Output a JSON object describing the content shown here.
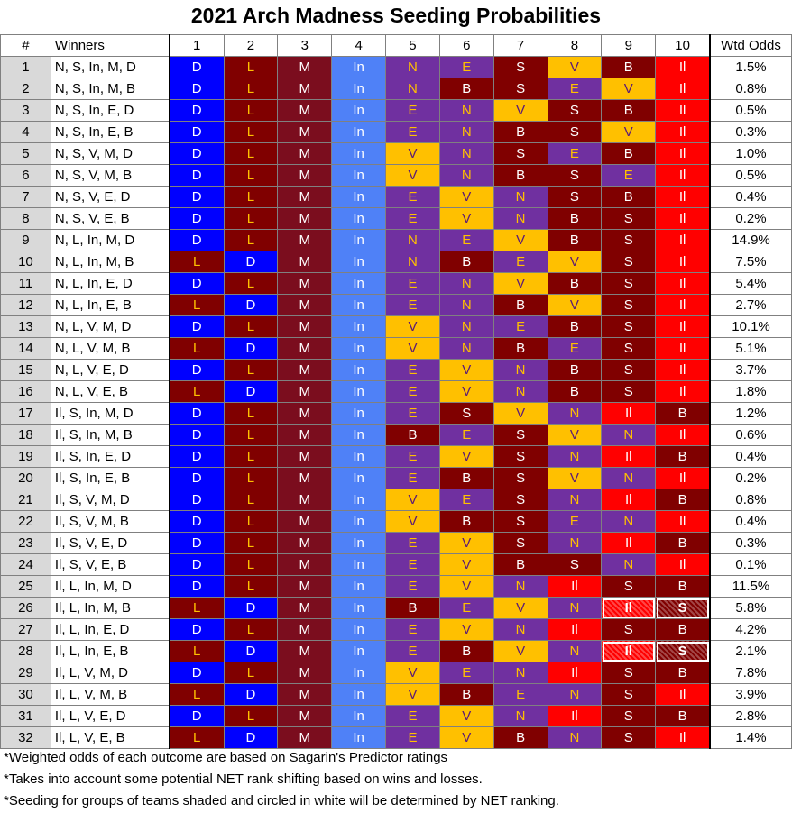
{
  "title": "2021 Arch Madness Seeding Probabilities",
  "headers": [
    "#",
    "Winners",
    "1",
    "2",
    "3",
    "4",
    "5",
    "6",
    "7",
    "8",
    "9",
    "10",
    "Wtd Odds"
  ],
  "team_colors": {
    "D": {
      "bg": "#0000ff",
      "fg": "#ffffff"
    },
    "L": {
      "bg": "#800000",
      "fg": "#ffc000"
    },
    "M": {
      "bg": "#7b0d1e",
      "fg": "#ffffff"
    },
    "In": {
      "bg": "#4f81f7",
      "fg": "#ffffff"
    },
    "N": {
      "bg": "#7030a0",
      "fg": "#ffc000"
    },
    "E": {
      "bg": "#7030a0",
      "fg": "#ffc000"
    },
    "S": {
      "bg": "#800000",
      "fg": "#ffffff"
    },
    "V": {
      "bg": "#ffc000",
      "fg": "#5b1a76"
    },
    "B": {
      "bg": "#800000",
      "fg": "#ffffff"
    },
    "Il": {
      "bg": "#ff0000",
      "fg": "#ffffff"
    }
  },
  "chart_data": {
    "type": "table",
    "columns": [
      "#",
      "Winners",
      "1",
      "2",
      "3",
      "4",
      "5",
      "6",
      "7",
      "8",
      "9",
      "10",
      "Wtd Odds"
    ],
    "rows": [
      {
        "num": "1",
        "winners": "N, S, In, M, D",
        "seeds": [
          "D",
          "L",
          "M",
          "In",
          "N",
          "E",
          "S",
          "V",
          "B",
          "Il"
        ],
        "odds": "1.5%"
      },
      {
        "num": "2",
        "winners": "N, S, In, M, B",
        "seeds": [
          "D",
          "L",
          "M",
          "In",
          "N",
          "B",
          "S",
          "E",
          "V",
          "Il"
        ],
        "odds": "0.8%"
      },
      {
        "num": "3",
        "winners": "N, S, In, E, D",
        "seeds": [
          "D",
          "L",
          "M",
          "In",
          "E",
          "N",
          "V",
          "S",
          "B",
          "Il"
        ],
        "odds": "0.5%"
      },
      {
        "num": "4",
        "winners": "N, S, In, E, B",
        "seeds": [
          "D",
          "L",
          "M",
          "In",
          "E",
          "N",
          "B",
          "S",
          "V",
          "Il"
        ],
        "odds": "0.3%"
      },
      {
        "num": "5",
        "winners": "N, S, V, M, D",
        "seeds": [
          "D",
          "L",
          "M",
          "In",
          "V",
          "N",
          "S",
          "E",
          "B",
          "Il"
        ],
        "odds": "1.0%"
      },
      {
        "num": "6",
        "winners": "N, S, V, M, B",
        "seeds": [
          "D",
          "L",
          "M",
          "In",
          "V",
          "N",
          "B",
          "S",
          "E",
          "Il"
        ],
        "odds": "0.5%"
      },
      {
        "num": "7",
        "winners": "N, S, V, E, D",
        "seeds": [
          "D",
          "L",
          "M",
          "In",
          "E",
          "V",
          "N",
          "S",
          "B",
          "Il"
        ],
        "odds": "0.4%"
      },
      {
        "num": "8",
        "winners": "N, S, V, E, B",
        "seeds": [
          "D",
          "L",
          "M",
          "In",
          "E",
          "V",
          "N",
          "B",
          "S",
          "Il"
        ],
        "odds": "0.2%"
      },
      {
        "num": "9",
        "winners": "N, L, In, M, D",
        "seeds": [
          "D",
          "L",
          "M",
          "In",
          "N",
          "E",
          "V",
          "B",
          "S",
          "Il"
        ],
        "odds": "14.9%"
      },
      {
        "num": "10",
        "winners": "N, L, In, M, B",
        "seeds": [
          "L",
          "D",
          "M",
          "In",
          "N",
          "B",
          "E",
          "V",
          "S",
          "Il"
        ],
        "odds": "7.5%"
      },
      {
        "num": "11",
        "winners": "N, L, In, E, D",
        "seeds": [
          "D",
          "L",
          "M",
          "In",
          "E",
          "N",
          "V",
          "B",
          "S",
          "Il"
        ],
        "odds": "5.4%"
      },
      {
        "num": "12",
        "winners": "N, L, In, E, B",
        "seeds": [
          "L",
          "D",
          "M",
          "In",
          "E",
          "N",
          "B",
          "V",
          "S",
          "Il"
        ],
        "odds": "2.7%"
      },
      {
        "num": "13",
        "winners": "N, L, V, M, D",
        "seeds": [
          "D",
          "L",
          "M",
          "In",
          "V",
          "N",
          "E",
          "B",
          "S",
          "Il"
        ],
        "odds": "10.1%"
      },
      {
        "num": "14",
        "winners": "N, L, V, M, B",
        "seeds": [
          "L",
          "D",
          "M",
          "In",
          "V",
          "N",
          "B",
          "E",
          "S",
          "Il"
        ],
        "odds": "5.1%"
      },
      {
        "num": "15",
        "winners": "N, L, V, E, D",
        "seeds": [
          "D",
          "L",
          "M",
          "In",
          "E",
          "V",
          "N",
          "B",
          "S",
          "Il"
        ],
        "odds": "3.7%"
      },
      {
        "num": "16",
        "winners": "N, L, V, E, B",
        "seeds": [
          "L",
          "D",
          "M",
          "In",
          "E",
          "V",
          "N",
          "B",
          "S",
          "Il"
        ],
        "odds": "1.8%"
      },
      {
        "num": "17",
        "winners": "Il, S, In, M, D",
        "seeds": [
          "D",
          "L",
          "M",
          "In",
          "E",
          "S",
          "V",
          "N",
          "Il",
          "B"
        ],
        "odds": "1.2%"
      },
      {
        "num": "18",
        "winners": "Il, S, In, M, B",
        "seeds": [
          "D",
          "L",
          "M",
          "In",
          "B",
          "E",
          "S",
          "V",
          "N",
          "Il"
        ],
        "odds": "0.6%"
      },
      {
        "num": "19",
        "winners": "Il, S, In, E, D",
        "seeds": [
          "D",
          "L",
          "M",
          "In",
          "E",
          "V",
          "S",
          "N",
          "Il",
          "B"
        ],
        "odds": "0.4%"
      },
      {
        "num": "20",
        "winners": "Il, S, In, E, B",
        "seeds": [
          "D",
          "L",
          "M",
          "In",
          "E",
          "B",
          "S",
          "V",
          "N",
          "Il"
        ],
        "odds": "0.2%"
      },
      {
        "num": "21",
        "winners": "Il, S, V, M, D",
        "seeds": [
          "D",
          "L",
          "M",
          "In",
          "V",
          "E",
          "S",
          "N",
          "Il",
          "B"
        ],
        "odds": "0.8%"
      },
      {
        "num": "22",
        "winners": "Il, S, V, M, B",
        "seeds": [
          "D",
          "L",
          "M",
          "In",
          "V",
          "B",
          "S",
          "E",
          "N",
          "Il"
        ],
        "odds": "0.4%"
      },
      {
        "num": "23",
        "winners": "Il, S, V, E, D",
        "seeds": [
          "D",
          "L",
          "M",
          "In",
          "E",
          "V",
          "S",
          "N",
          "Il",
          "B"
        ],
        "odds": "0.3%"
      },
      {
        "num": "24",
        "winners": "Il, S, V, E, B",
        "seeds": [
          "D",
          "L",
          "M",
          "In",
          "E",
          "V",
          "B",
          "S",
          "N",
          "Il"
        ],
        "odds": "0.1%"
      },
      {
        "num": "25",
        "winners": "Il, L, In, M, D",
        "seeds": [
          "D",
          "L",
          "M",
          "In",
          "E",
          "V",
          "N",
          "Il",
          "S",
          "B"
        ],
        "odds": "11.5%"
      },
      {
        "num": "26",
        "winners": "Il, L, In, M, B",
        "seeds": [
          "L",
          "D",
          "M",
          "In",
          "B",
          "E",
          "V",
          "N",
          "Il",
          "S"
        ],
        "odds": "5.8%",
        "shaded": [
          8,
          9
        ]
      },
      {
        "num": "27",
        "winners": "Il, L, In, E, D",
        "seeds": [
          "D",
          "L",
          "M",
          "In",
          "E",
          "V",
          "N",
          "Il",
          "S",
          "B"
        ],
        "odds": "4.2%"
      },
      {
        "num": "28",
        "winners": "Il, L, In, E, B",
        "seeds": [
          "L",
          "D",
          "M",
          "In",
          "E",
          "B",
          "V",
          "N",
          "Il",
          "S"
        ],
        "odds": "2.1%",
        "shaded": [
          8,
          9
        ]
      },
      {
        "num": "29",
        "winners": "Il, L, V, M, D",
        "seeds": [
          "D",
          "L",
          "M",
          "In",
          "V",
          "E",
          "N",
          "Il",
          "S",
          "B"
        ],
        "odds": "7.8%"
      },
      {
        "num": "30",
        "winners": "Il, L, V, M, B",
        "seeds": [
          "L",
          "D",
          "M",
          "In",
          "V",
          "B",
          "E",
          "N",
          "S",
          "Il"
        ],
        "odds": "3.9%"
      },
      {
        "num": "31",
        "winners": "Il, L, V, E, D",
        "seeds": [
          "D",
          "L",
          "M",
          "In",
          "E",
          "V",
          "N",
          "Il",
          "S",
          "B"
        ],
        "odds": "2.8%"
      },
      {
        "num": "32",
        "winners": "Il, L, V, E, B",
        "seeds": [
          "L",
          "D",
          "M",
          "In",
          "E",
          "V",
          "B",
          "N",
          "S",
          "Il"
        ],
        "odds": "1.4%"
      }
    ]
  },
  "footnotes": [
    "*Weighted odds of each outcome are based on Sagarin's Predictor ratings",
    "*Takes into account some potential NET rank shifting based on wins and losses.",
    "*Seeding for groups of teams shaded and circled in white will be determined by NET ranking."
  ]
}
